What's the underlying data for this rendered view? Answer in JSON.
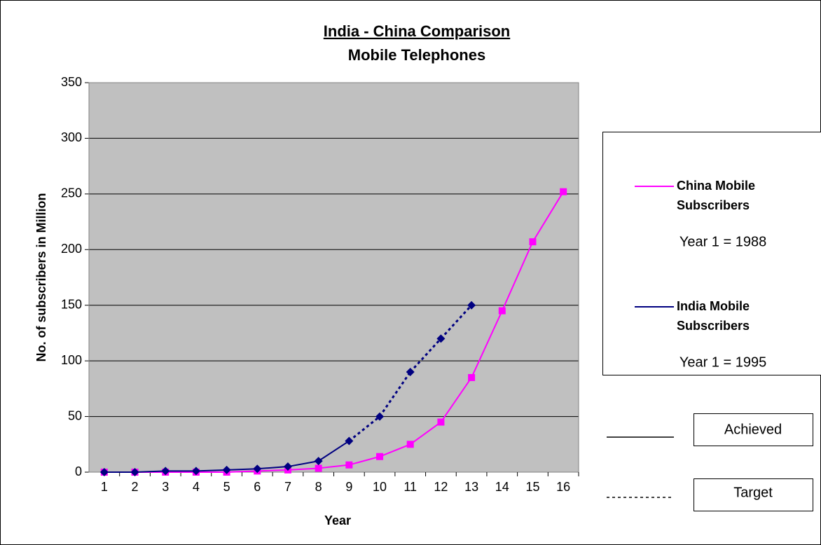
{
  "chart_data": {
    "type": "line",
    "title": "India - China Comparison",
    "subtitle": "Mobile Telephones",
    "x_label": "Year",
    "y_label": "No. of subscribers  in Million",
    "categories": [
      1,
      2,
      3,
      4,
      5,
      6,
      7,
      8,
      9,
      10,
      11,
      12,
      13,
      14,
      15,
      16
    ],
    "ylim": [
      0,
      350
    ],
    "yticks": [
      0,
      50,
      100,
      150,
      200,
      250,
      300,
      350
    ],
    "grid": true,
    "plot_background": "#c0c0c0",
    "series": [
      {
        "name": "China Mobile Subscribers",
        "note": "Year 1 = 1988",
        "color": "#ff00ff",
        "marker": "square",
        "values": [
          0,
          0,
          0,
          0,
          0,
          1,
          2,
          3.5,
          6.5,
          14,
          25,
          45,
          85,
          145,
          207,
          252
        ],
        "line_style": [
          "solid",
          "solid",
          "solid",
          "solid",
          "solid",
          "solid",
          "solid",
          "solid",
          "solid",
          "solid",
          "solid",
          "solid",
          "solid",
          "solid",
          "solid",
          "solid"
        ]
      },
      {
        "name": "India Mobile Subscribers",
        "note": "Year 1 = 1995",
        "color": "#000080",
        "marker": "diamond",
        "values": [
          0,
          0,
          1,
          1,
          2,
          3,
          5,
          10,
          28,
          50,
          90,
          120,
          150,
          null,
          null,
          null
        ],
        "line_style": [
          "solid",
          "solid",
          "solid",
          "solid",
          "solid",
          "solid",
          "solid",
          "solid",
          "solid",
          "dashed",
          "dashed",
          "dashed",
          "dashed",
          null,
          null,
          null
        ]
      }
    ],
    "line_style_key": [
      {
        "label": "Achieved",
        "style": "solid"
      },
      {
        "label": "Target",
        "style": "dashed"
      }
    ]
  }
}
